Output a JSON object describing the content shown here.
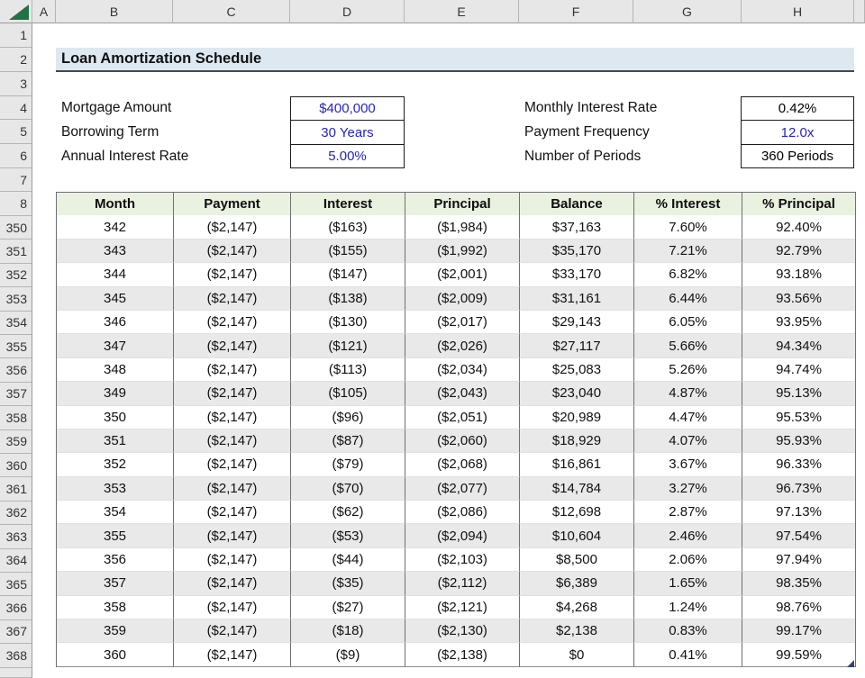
{
  "title": "Loan Amortization Schedule",
  "column_headers": [
    "A",
    "B",
    "C",
    "D",
    "E",
    "F",
    "G",
    "H"
  ],
  "row_headers_top": [
    "1",
    "2",
    "3",
    "4",
    "5",
    "6",
    "7",
    "8"
  ],
  "row_headers_data": [
    "350",
    "351",
    "352",
    "353",
    "354",
    "355",
    "356",
    "357",
    "358",
    "359",
    "360",
    "361",
    "362",
    "363",
    "364",
    "365",
    "366",
    "367",
    "368"
  ],
  "summary_left": [
    {
      "label": "Mortgage Amount",
      "value": "$400,000",
      "style": "blue"
    },
    {
      "label": "Borrowing Term",
      "value": "30 Years",
      "style": "blue"
    },
    {
      "label": "Annual Interest Rate",
      "value": "5.00%",
      "style": "blue"
    }
  ],
  "summary_right": [
    {
      "label": "Monthly Interest Rate",
      "value": "0.42%",
      "style": "black"
    },
    {
      "label": "Payment Frequency",
      "value": "12.0x",
      "style": "blue"
    },
    {
      "label": "Number of Periods",
      "value": "360 Periods",
      "style": "black"
    }
  ],
  "schedule": {
    "headers": [
      "Month",
      "Payment",
      "Interest",
      "Principal",
      "Balance",
      "% Interest",
      "% Principal"
    ],
    "rows": [
      [
        "342",
        "($2,147)",
        "($163)",
        "($1,984)",
        "$37,163",
        "7.60%",
        "92.40%"
      ],
      [
        "343",
        "($2,147)",
        "($155)",
        "($1,992)",
        "$35,170",
        "7.21%",
        "92.79%"
      ],
      [
        "344",
        "($2,147)",
        "($147)",
        "($2,001)",
        "$33,170",
        "6.82%",
        "93.18%"
      ],
      [
        "345",
        "($2,147)",
        "($138)",
        "($2,009)",
        "$31,161",
        "6.44%",
        "93.56%"
      ],
      [
        "346",
        "($2,147)",
        "($130)",
        "($2,017)",
        "$29,143",
        "6.05%",
        "93.95%"
      ],
      [
        "347",
        "($2,147)",
        "($121)",
        "($2,026)",
        "$27,117",
        "5.66%",
        "94.34%"
      ],
      [
        "348",
        "($2,147)",
        "($113)",
        "($2,034)",
        "$25,083",
        "5.26%",
        "94.74%"
      ],
      [
        "349",
        "($2,147)",
        "($105)",
        "($2,043)",
        "$23,040",
        "4.87%",
        "95.13%"
      ],
      [
        "350",
        "($2,147)",
        "($96)",
        "($2,051)",
        "$20,989",
        "4.47%",
        "95.53%"
      ],
      [
        "351",
        "($2,147)",
        "($87)",
        "($2,060)",
        "$18,929",
        "4.07%",
        "95.93%"
      ],
      [
        "352",
        "($2,147)",
        "($79)",
        "($2,068)",
        "$16,861",
        "3.67%",
        "96.33%"
      ],
      [
        "353",
        "($2,147)",
        "($70)",
        "($2,077)",
        "$14,784",
        "3.27%",
        "96.73%"
      ],
      [
        "354",
        "($2,147)",
        "($62)",
        "($2,086)",
        "$12,698",
        "2.87%",
        "97.13%"
      ],
      [
        "355",
        "($2,147)",
        "($53)",
        "($2,094)",
        "$10,604",
        "2.46%",
        "97.54%"
      ],
      [
        "356",
        "($2,147)",
        "($44)",
        "($2,103)",
        "$8,500",
        "2.06%",
        "97.94%"
      ],
      [
        "357",
        "($2,147)",
        "($35)",
        "($2,112)",
        "$6,389",
        "1.65%",
        "98.35%"
      ],
      [
        "358",
        "($2,147)",
        "($27)",
        "($2,121)",
        "$4,268",
        "1.24%",
        "98.76%"
      ],
      [
        "359",
        "($2,147)",
        "($18)",
        "($2,130)",
        "$2,138",
        "0.83%",
        "99.17%"
      ],
      [
        "360",
        "($2,147)",
        "($9)",
        "($2,138)",
        "$0",
        "0.41%",
        "99.59%"
      ]
    ]
  },
  "colors": {
    "input_text": "#2525bd",
    "header_green": "#e9f1e0",
    "title_fill": "#dde8f1",
    "alt_row_fill": "#e9e9e9",
    "select_all_green": "#217346",
    "fill_handle_navy": "#30436a"
  }
}
